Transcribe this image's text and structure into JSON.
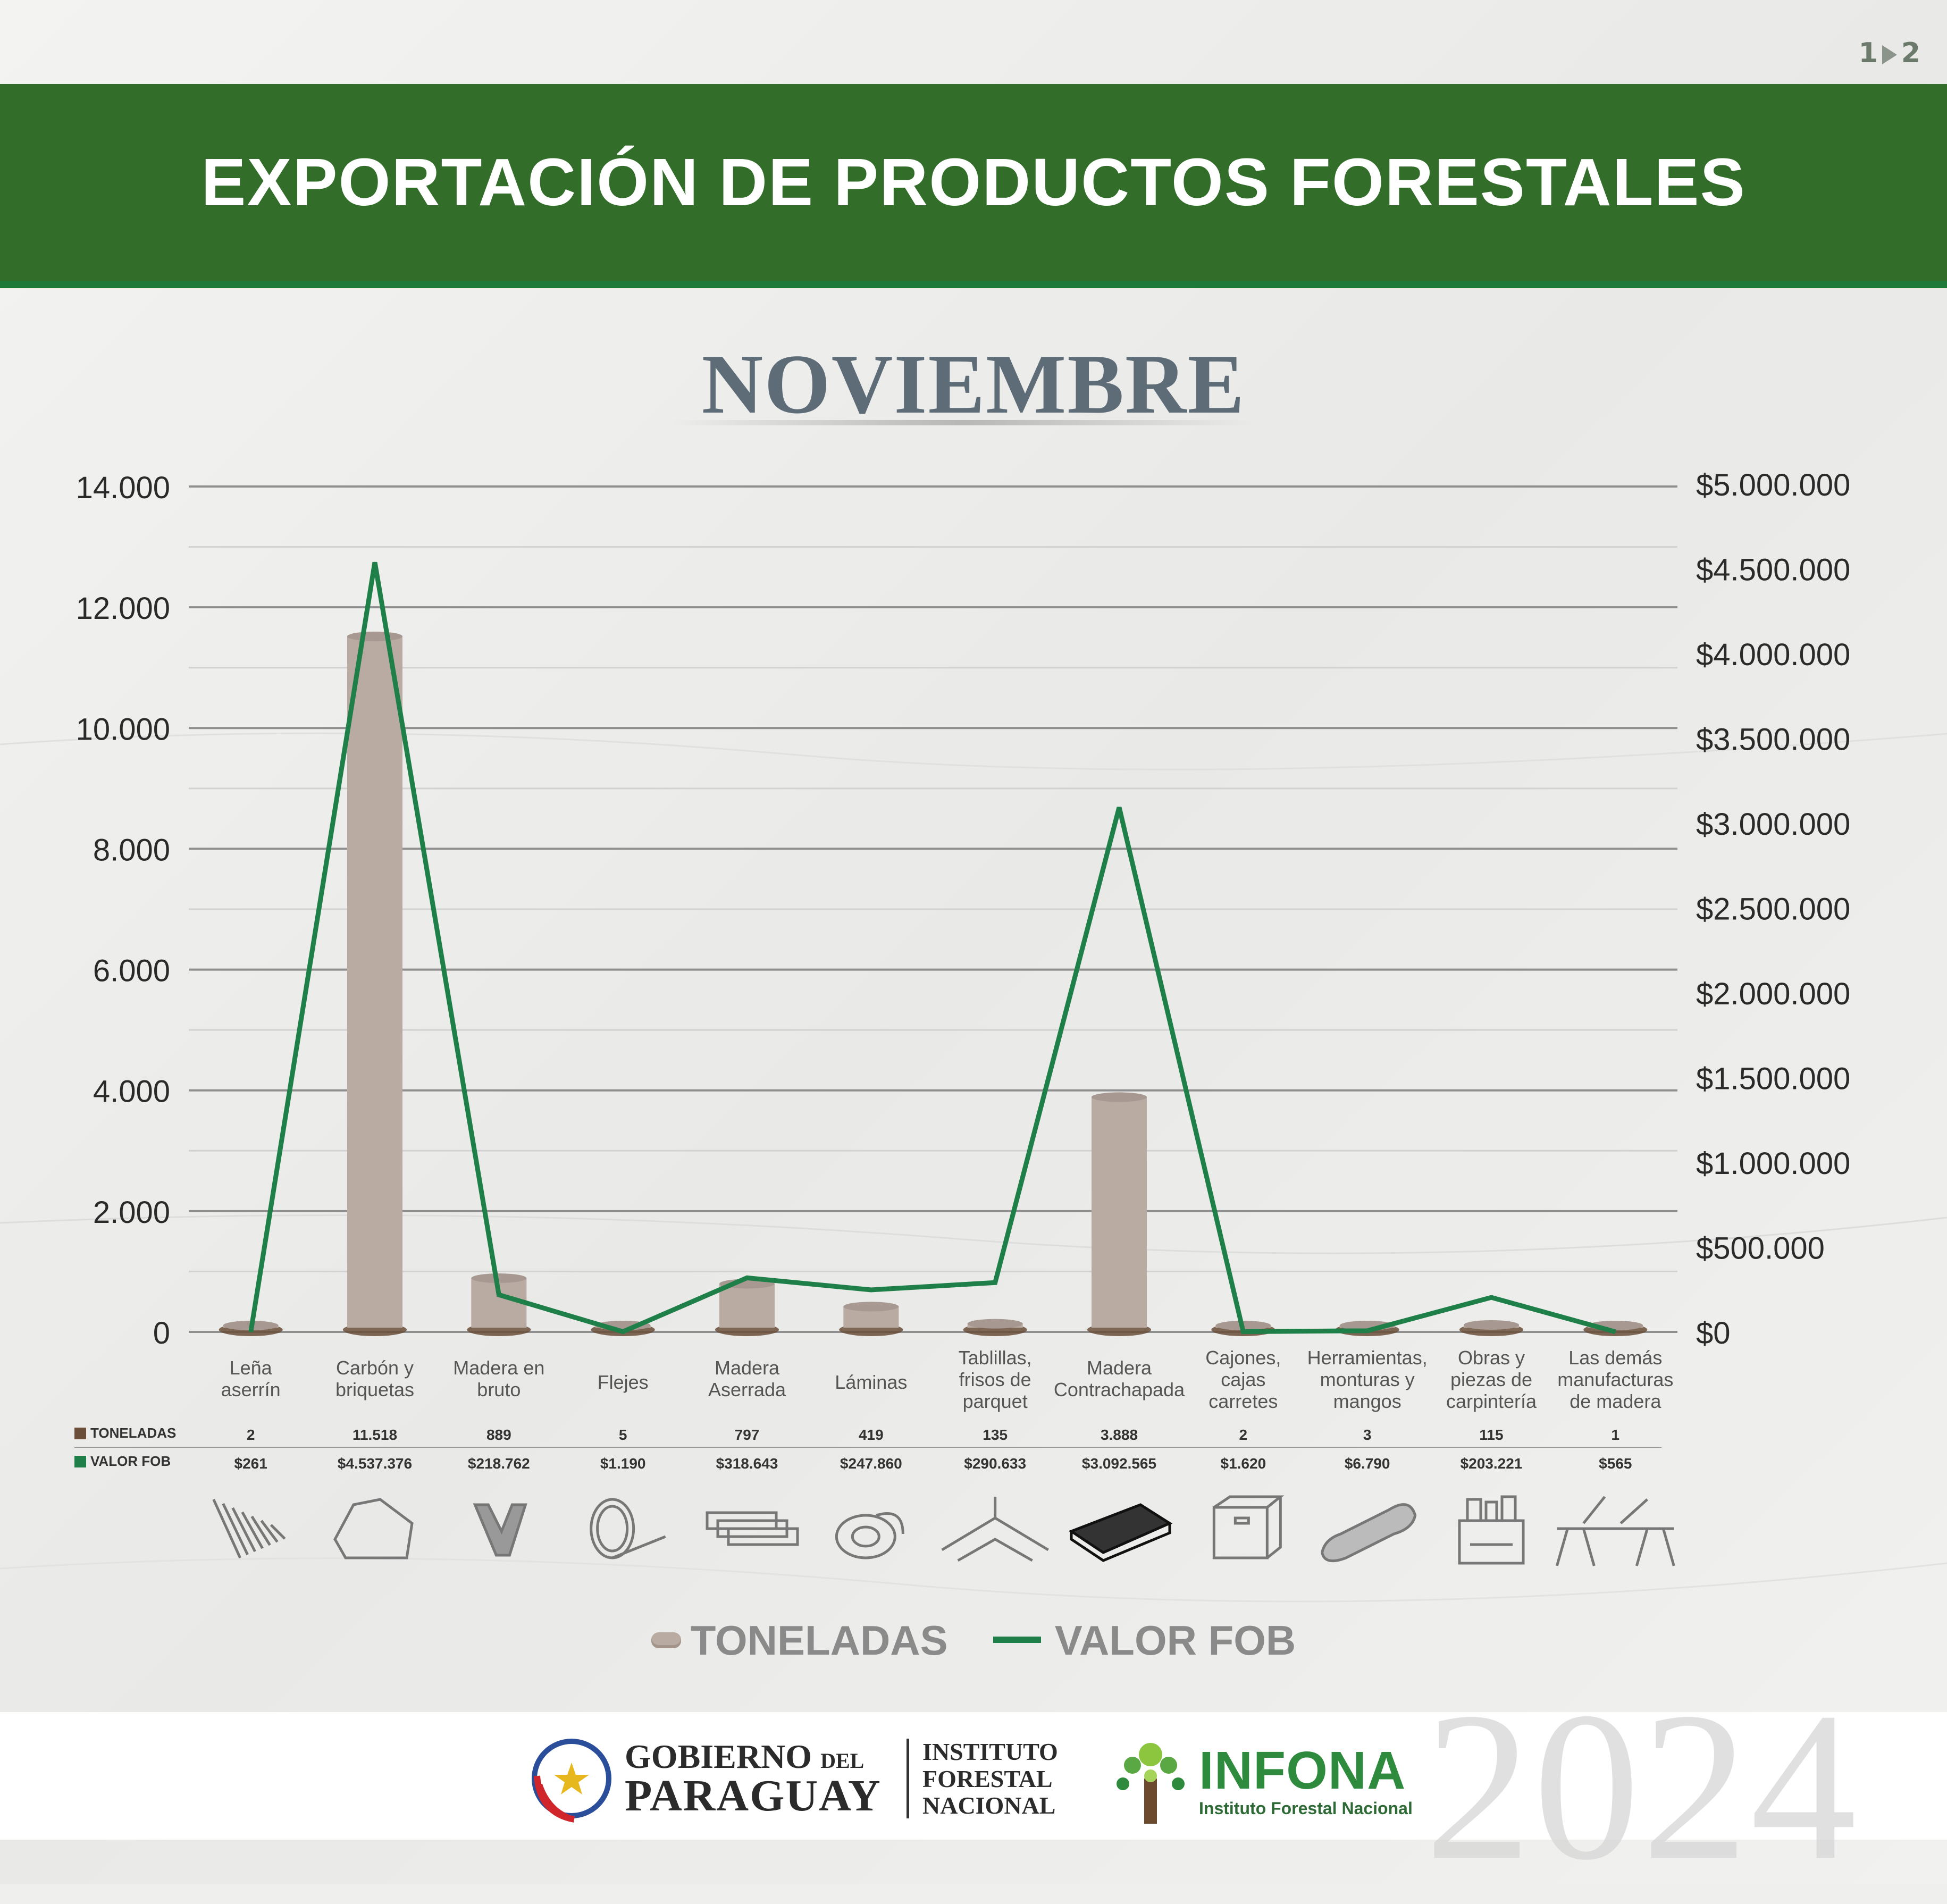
{
  "pager": {
    "current": "1",
    "next": "2"
  },
  "banner": {
    "title": "EXPORTACIÓN DE PRODUCTOS FORESTALES"
  },
  "month": "NOVIEMBRE",
  "chart_data": {
    "type": "bar",
    "title": "EXPORTACIÓN DE PRODUCTOS FORESTALES",
    "subtitle": "NOVIEMBRE",
    "categories": [
      [
        "Leña",
        "aserrín"
      ],
      [
        "Carbón y",
        "briquetas"
      ],
      [
        "Madera en",
        "bruto"
      ],
      [
        "Flejes"
      ],
      [
        "Madera",
        "Aserrada"
      ],
      [
        "Láminas"
      ],
      [
        "Tablillas,",
        "frisos de",
        "parquet"
      ],
      [
        "Madera",
        "Contrachapada"
      ],
      [
        "Cajones,",
        "cajas",
        "carretes"
      ],
      [
        "Herramientas,",
        "monturas y",
        "mangos"
      ],
      [
        "Obras y",
        "piezas de",
        "carpintería"
      ],
      [
        "Las demás",
        "manufacturas",
        "de madera"
      ]
    ],
    "series": [
      {
        "name": "TONELADAS",
        "type": "bar",
        "axis": "left",
        "values": [
          2,
          11518,
          889,
          5,
          797,
          419,
          135,
          3888,
          2,
          3,
          115,
          1
        ],
        "labels": [
          "2",
          "11.518",
          "889",
          "5",
          "797",
          "419",
          "135",
          "3.888",
          "2",
          "3",
          "115",
          "1"
        ],
        "color": "#b9aba2"
      },
      {
        "name": "VALOR FOB",
        "type": "line",
        "axis": "right",
        "values": [
          261,
          4537376,
          218762,
          1190,
          318643,
          247860,
          290633,
          3092565,
          1620,
          6790,
          203221,
          565
        ],
        "labels": [
          "$261",
          "$4.537.376",
          "$218.762",
          "$1.190",
          "$318.643",
          "$247.860",
          "$290.633",
          "$3.092.565",
          "$1.620",
          "$6.790",
          "$203.221",
          "$565"
        ],
        "color": "#1e8048"
      }
    ],
    "left_axis": {
      "ticks": [
        "0",
        "2.000",
        "4.000",
        "6.000",
        "8.000",
        "10.000",
        "12.000",
        "14.000"
      ],
      "ylim": [
        0,
        14000
      ]
    },
    "right_axis": {
      "ticks": [
        "$0",
        "$500.000",
        "$1.000.000",
        "$1.500.000",
        "$2.000.000",
        "$2.500.000",
        "$3.000.000",
        "$3.500.000",
        "$4.000.000",
        "$4.500.000",
        "$5.000.000"
      ],
      "ylim": [
        0,
        5000000
      ]
    },
    "grid": true,
    "legend": "bottom-center",
    "row_labels": {
      "toneladas": "TONELADAS",
      "valor_fob": "VALOR FOB"
    }
  },
  "legend": {
    "toneladas": "TONELADAS",
    "valor_fob": "VALOR FOB"
  },
  "colors": {
    "banner": "#326d2a",
    "bar": "#b9aba2",
    "line": "#1e8048",
    "legend_text": "#8a8a8a",
    "month": "#5e6c78"
  },
  "icons": [
    "wood-chips-icon",
    "charcoal-icon",
    "log-icon",
    "strap-roll-icon",
    "sawn-lumber-icon",
    "veneer-roll-icon",
    "parquet-floor-icon",
    "plywood-board-icon",
    "cardboard-box-icon",
    "tool-handle-icon",
    "toolbox-icon",
    "sawhorse-icon"
  ],
  "footer": {
    "gov_line1": "GOBIERNO",
    "gov_del": "DEL",
    "gov_line2": "PARAGUAY",
    "institute": [
      "INSTITUTO",
      "FORESTAL",
      "NACIONAL"
    ],
    "infona_name": "INFONA",
    "infona_sub": "Instituto Forestal Nacional",
    "year": "2024"
  }
}
